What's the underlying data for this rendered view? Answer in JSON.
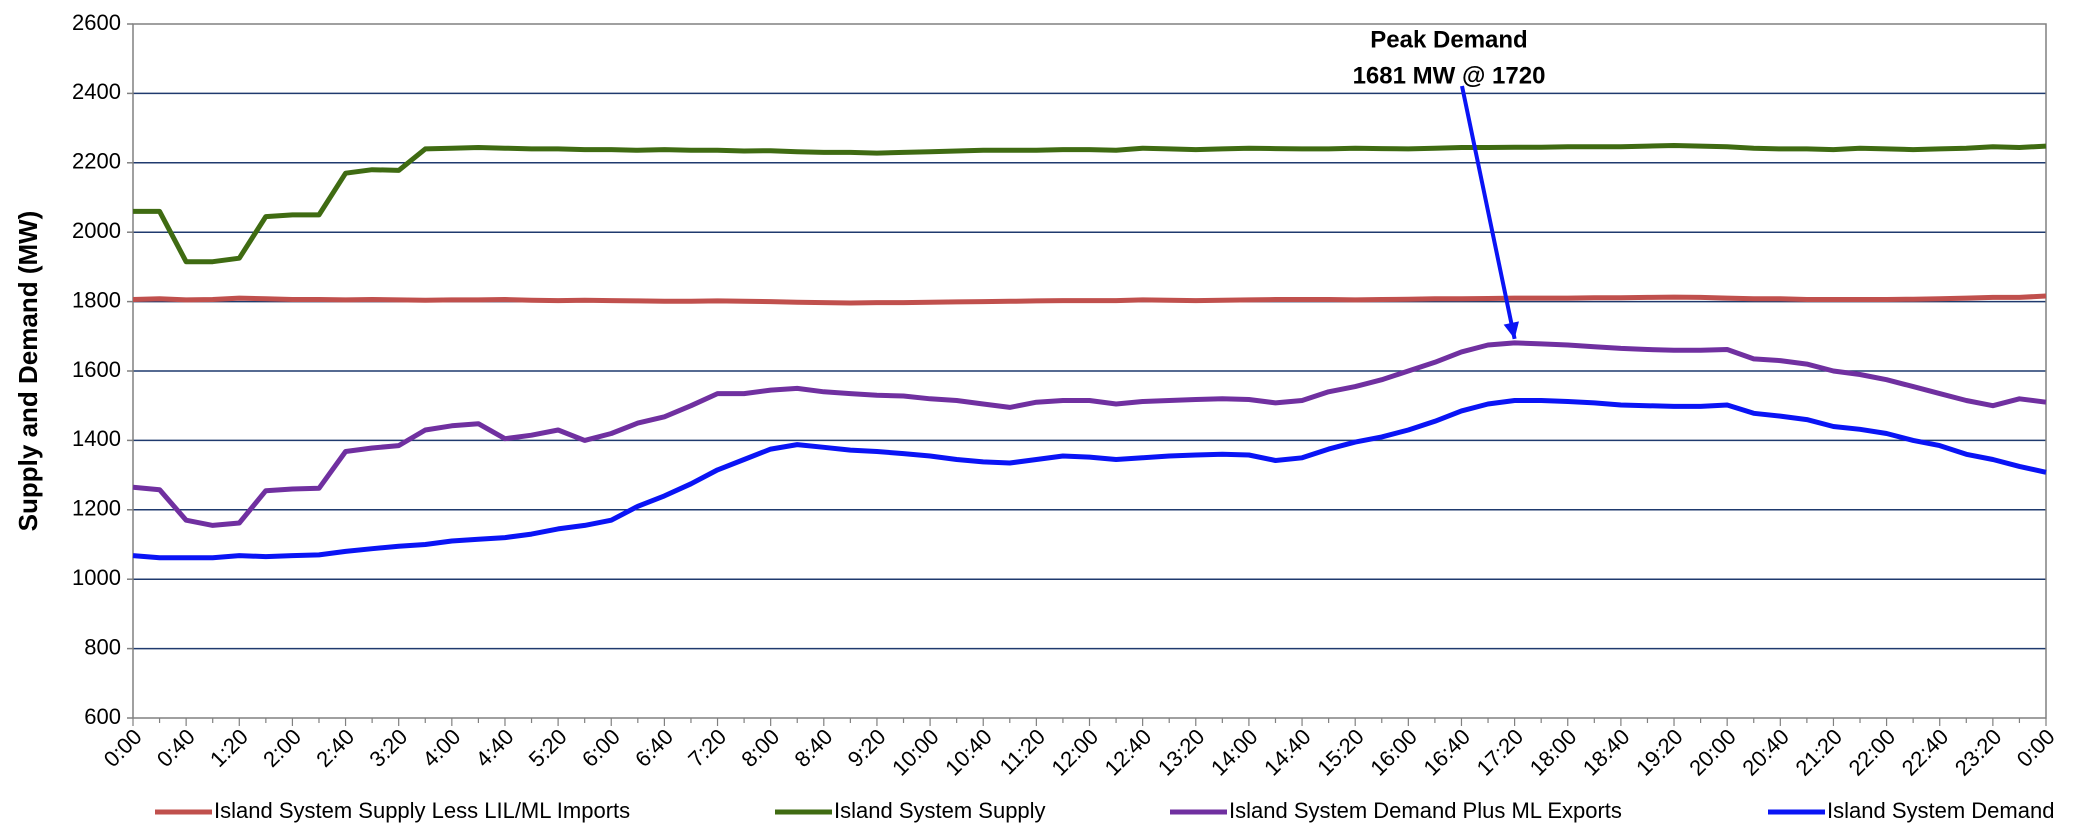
{
  "chart_data": {
    "type": "line",
    "annotations": [
      "Peak Demand",
      "1681 MW @ 1720"
    ],
    "y_label": "Supply and Demand (MW)",
    "categories": [
      "0:00",
      null,
      "0:40",
      null,
      "1:20",
      null,
      "2:00",
      null,
      "2:40",
      null,
      "3:20",
      null,
      "4:00",
      null,
      "4:40",
      null,
      "5:20",
      null,
      "6:00",
      null,
      "6:40",
      null,
      "7:20",
      null,
      "8:00",
      null,
      "8:40",
      null,
      "9:20",
      null,
      "10:00",
      null,
      "10:40",
      null,
      "11:20",
      null,
      "12:00",
      null,
      "12:40",
      null,
      "13:20",
      null,
      "14:00",
      null,
      "14:40",
      null,
      "15:20",
      null,
      "16:00",
      null,
      "16:40",
      null,
      "17:20",
      null,
      "18:00",
      null,
      "18:40",
      null,
      "19:20",
      null,
      "20:00",
      null,
      "20:40",
      null,
      "21:20",
      null,
      "22:00",
      null,
      "22:40",
      null,
      "23:20",
      null,
      "0:00"
    ],
    "series": [
      {
        "name": "Island System Supply Less LIL/ML Imports",
        "color": "#c0504d",
        "values": [
          1806,
          1808,
          1805,
          1806,
          1810,
          1808,
          1806,
          1806,
          1805,
          1806,
          1805,
          1804,
          1805,
          1805,
          1806,
          1804,
          1803,
          1804,
          1803,
          1802,
          1801,
          1801,
          1802,
          1801,
          1800,
          1798,
          1797,
          1796,
          1797,
          1797,
          1798,
          1799,
          1800,
          1801,
          1802,
          1803,
          1803,
          1803,
          1805,
          1804,
          1803,
          1804,
          1805,
          1806,
          1806,
          1806,
          1805,
          1806,
          1807,
          1808,
          1808,
          1809,
          1810,
          1810,
          1810,
          1811,
          1811,
          1812,
          1813,
          1812,
          1810,
          1808,
          1808,
          1806,
          1806,
          1806,
          1806,
          1807,
          1808,
          1810,
          1812,
          1812,
          1816
        ]
      },
      {
        "name": "Island System Supply",
        "color": "#3f6b12",
        "values": [
          2060,
          2060,
          1915,
          1915,
          1925,
          2045,
          2050,
          2050,
          2170,
          2180,
          2178,
          2240,
          2242,
          2244,
          2242,
          2240,
          2240,
          2238,
          2238,
          2236,
          2238,
          2236,
          2236,
          2234,
          2235,
          2232,
          2230,
          2230,
          2228,
          2230,
          2232,
          2234,
          2236,
          2236,
          2236,
          2238,
          2238,
          2236,
          2242,
          2240,
          2238,
          2240,
          2242,
          2241,
          2240,
          2240,
          2242,
          2241,
          2240,
          2242,
          2244,
          2244,
          2245,
          2245,
          2246,
          2246,
          2246,
          2248,
          2250,
          2248,
          2246,
          2242,
          2240,
          2240,
          2238,
          2242,
          2240,
          2238,
          2240,
          2242,
          2246,
          2244,
          2248
        ]
      },
      {
        "name": "Island System Demand Plus ML Exports",
        "color": "#7030a0",
        "values": [
          1265,
          1258,
          1170,
          1155,
          1162,
          1255,
          1260,
          1262,
          1368,
          1378,
          1385,
          1430,
          1442,
          1448,
          1405,
          1415,
          1430,
          1400,
          1420,
          1450,
          1468,
          1500,
          1535,
          1535,
          1545,
          1550,
          1540,
          1535,
          1530,
          1528,
          1520,
          1515,
          1505,
          1495,
          1510,
          1515,
          1515,
          1505,
          1512,
          1515,
          1518,
          1520,
          1518,
          1508,
          1515,
          1540,
          1555,
          1575,
          1600,
          1625,
          1655,
          1675,
          1681,
          1678,
          1675,
          1670,
          1665,
          1662,
          1660,
          1660,
          1662,
          1635,
          1630,
          1620,
          1600,
          1590,
          1575,
          1555,
          1535,
          1515,
          1500,
          1520,
          1510
        ]
      },
      {
        "name": "Island System Demand",
        "color": "#0a14f5",
        "values": [
          1068,
          1062,
          1062,
          1062,
          1068,
          1065,
          1068,
          1070,
          1080,
          1088,
          1095,
          1100,
          1110,
          1115,
          1120,
          1130,
          1145,
          1155,
          1170,
          1210,
          1240,
          1275,
          1315,
          1345,
          1375,
          1388,
          1380,
          1372,
          1368,
          1362,
          1355,
          1345,
          1338,
          1335,
          1345,
          1355,
          1352,
          1345,
          1350,
          1355,
          1358,
          1360,
          1358,
          1342,
          1350,
          1375,
          1395,
          1410,
          1430,
          1455,
          1485,
          1505,
          1515,
          1515,
          1512,
          1508,
          1502,
          1500,
          1498,
          1498,
          1502,
          1478,
          1470,
          1460,
          1440,
          1432,
          1420,
          1400,
          1385,
          1360,
          1345,
          1325,
          1308
        ]
      }
    ],
    "ylim": [
      600,
      2600
    ],
    "yticks": [
      600,
      800,
      1000,
      1200,
      1400,
      1600,
      1800,
      2000,
      2200,
      2400,
      2600
    ],
    "grid": true,
    "grid_color": "#1f3a6e",
    "legend": "bottom"
  }
}
